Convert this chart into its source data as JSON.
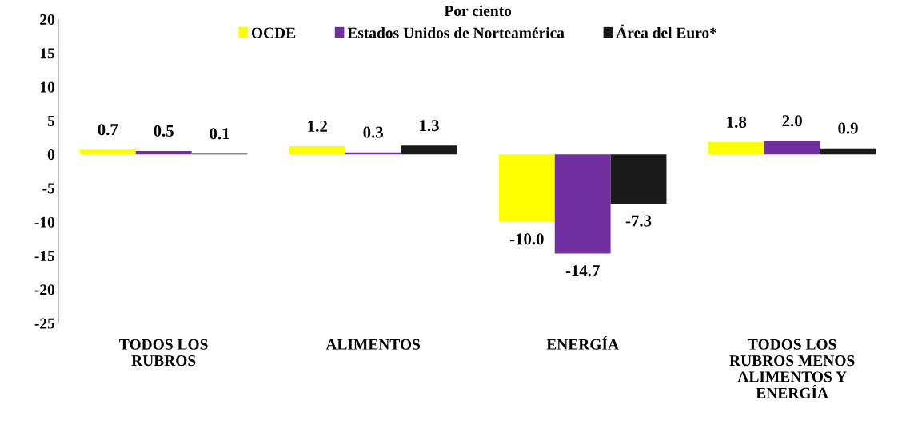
{
  "chart_data": {
    "type": "bar",
    "title": "Por ciento",
    "categories": [
      "TODOS LOS\nRUBROS",
      "ALIMENTOS",
      "ENERGÍA",
      "TODOS LOS\nRUBROS MENOS\nALIMENTOS Y\nENERGÍA"
    ],
    "series": [
      {
        "name": "OCDE",
        "color": "#ffff00",
        "values": [
          0.7,
          1.2,
          -10.0,
          1.8
        ],
        "value_labels": [
          "0.7",
          "1.2",
          "-10.0",
          "1.8"
        ]
      },
      {
        "name": "Estados Unidos de Norteamérica",
        "color": "#7030a0",
        "values": [
          0.5,
          0.3,
          -14.7,
          2.0
        ],
        "value_labels": [
          "0.5",
          "0.3",
          "-14.7",
          "2.0"
        ]
      },
      {
        "name": "Área del Euro*",
        "color": "#1a1a1a",
        "values": [
          0.1,
          1.3,
          -7.3,
          0.9
        ],
        "value_labels": [
          "0.1",
          "1.3",
          "-7.3",
          "0.9"
        ]
      }
    ],
    "ylim": [
      -25,
      20
    ],
    "yticks": [
      -25,
      -20,
      -15,
      -10,
      -5,
      0,
      5,
      10,
      15,
      20
    ],
    "legend": "top"
  }
}
